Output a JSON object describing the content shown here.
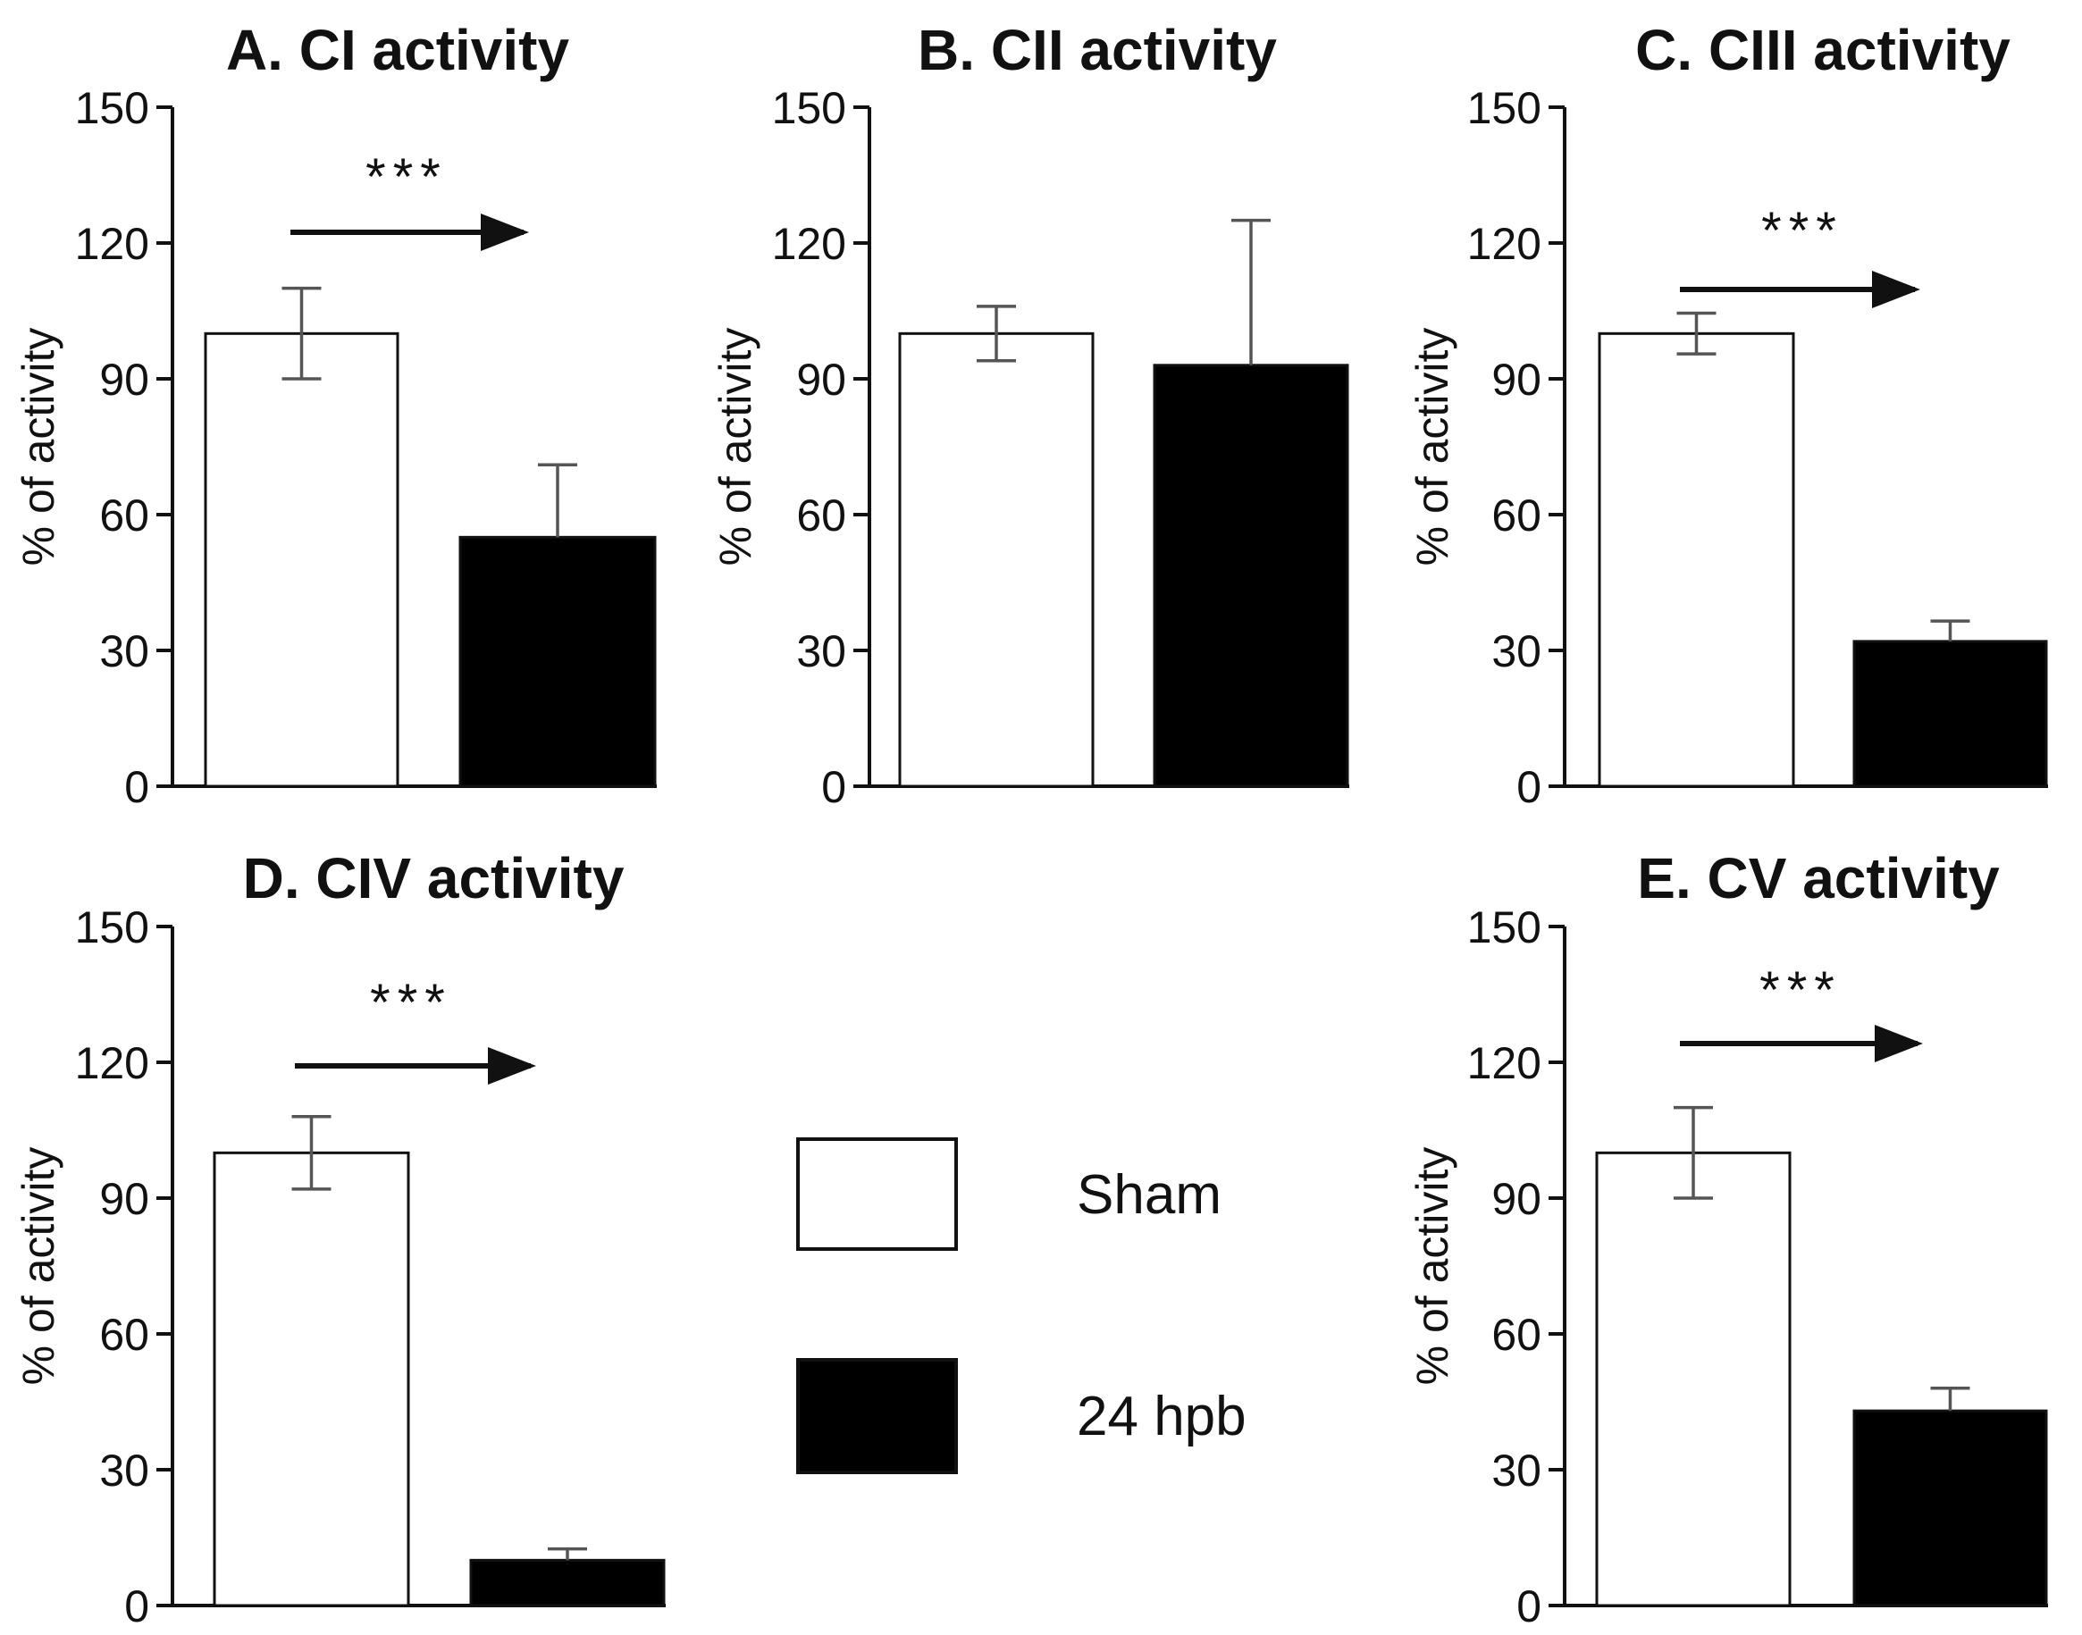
{
  "chart_data": [
    {
      "type": "bar",
      "title": "A. CI activity",
      "categories": [
        "Sham",
        "24 hpb"
      ],
      "values": [
        100,
        55
      ],
      "errors": [
        10,
        16
      ],
      "significance": "***",
      "xlabel": "",
      "ylabel": "% of activity",
      "ylim": [
        0,
        150
      ],
      "yticks": [
        "0",
        "30",
        "60",
        "90",
        "120",
        "150"
      ]
    },
    {
      "type": "bar",
      "title": "B. CII activity",
      "categories": [
        "Sham",
        "24 hpb"
      ],
      "values": [
        100,
        93
      ],
      "errors": [
        6,
        32
      ],
      "significance": "",
      "xlabel": "",
      "ylabel": "% of activity",
      "ylim": [
        0,
        150
      ],
      "yticks": [
        "0",
        "30",
        "60",
        "90",
        "120",
        "150"
      ]
    },
    {
      "type": "bar",
      "title": "C. CIII activity",
      "categories": [
        "Sham",
        "24 hpb"
      ],
      "values": [
        100,
        32
      ],
      "errors": [
        4.5,
        4.5
      ],
      "significance": "***",
      "xlabel": "",
      "ylabel": "% of activity",
      "ylim": [
        0,
        150
      ],
      "yticks": [
        "0",
        "30",
        "60",
        "90",
        "120",
        "150"
      ]
    },
    {
      "type": "bar",
      "title": "D. CIV activity",
      "categories": [
        "Sham",
        "24 hpb"
      ],
      "values": [
        100,
        10
      ],
      "errors": [
        8,
        2.5
      ],
      "significance": "***",
      "xlabel": "",
      "ylabel": "% of activity",
      "ylim": [
        0,
        150
      ],
      "yticks": [
        "0",
        "30",
        "60",
        "90",
        "120",
        "150"
      ]
    },
    {
      "type": "bar",
      "title": "E. CV activity",
      "categories": [
        "Sham",
        "24 hpb"
      ],
      "values": [
        100,
        43
      ],
      "errors": [
        10,
        5
      ],
      "significance": "***",
      "xlabel": "",
      "ylabel": "% of activity",
      "ylim": [
        0,
        150
      ],
      "yticks": [
        "0",
        "30",
        "60",
        "90",
        "120",
        "150"
      ]
    }
  ],
  "legend": {
    "items": [
      {
        "label": "Sham",
        "fill": "#ffffff"
      },
      {
        "label": "24 hpb",
        "fill": "#000000"
      }
    ]
  },
  "colors": {
    "sham": "#ffffff",
    "treated": "#000000",
    "axis": "#111111",
    "errorbar": "#555555"
  }
}
